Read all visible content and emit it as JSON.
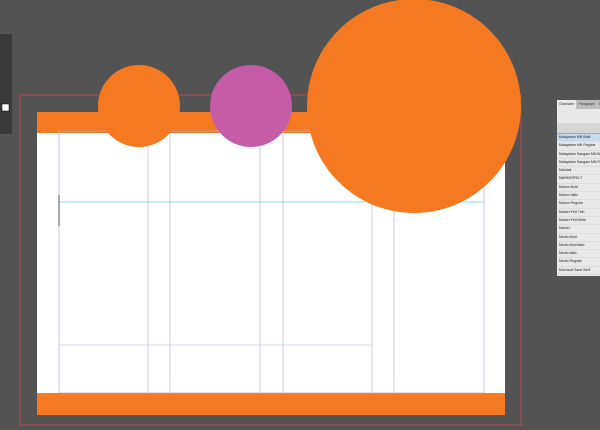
{
  "panel": {
    "tabs": [
      "Character",
      "Paragraph",
      "OpenType"
    ],
    "fonts": [
      "Malayalam MN Bold",
      "Malayalam MN Regular",
      "Malayalam Sangam MN Bold",
      "Malayalam Sangam MN Regular",
      "Mandali",
      "MARKERFELT",
      "Marion Bold",
      "Marion Italic",
      "Marion Regular",
      "Marker Felt Thin",
      "Marker Felt Wide",
      "Marvel",
      "Menlo Bold",
      "Menlo Bold Italic",
      "Menlo Italic",
      "Menlo Regular",
      "Microsoft Sans Serif",
      "Minion Pro Bold",
      "Minion Pro Regular"
    ]
  }
}
